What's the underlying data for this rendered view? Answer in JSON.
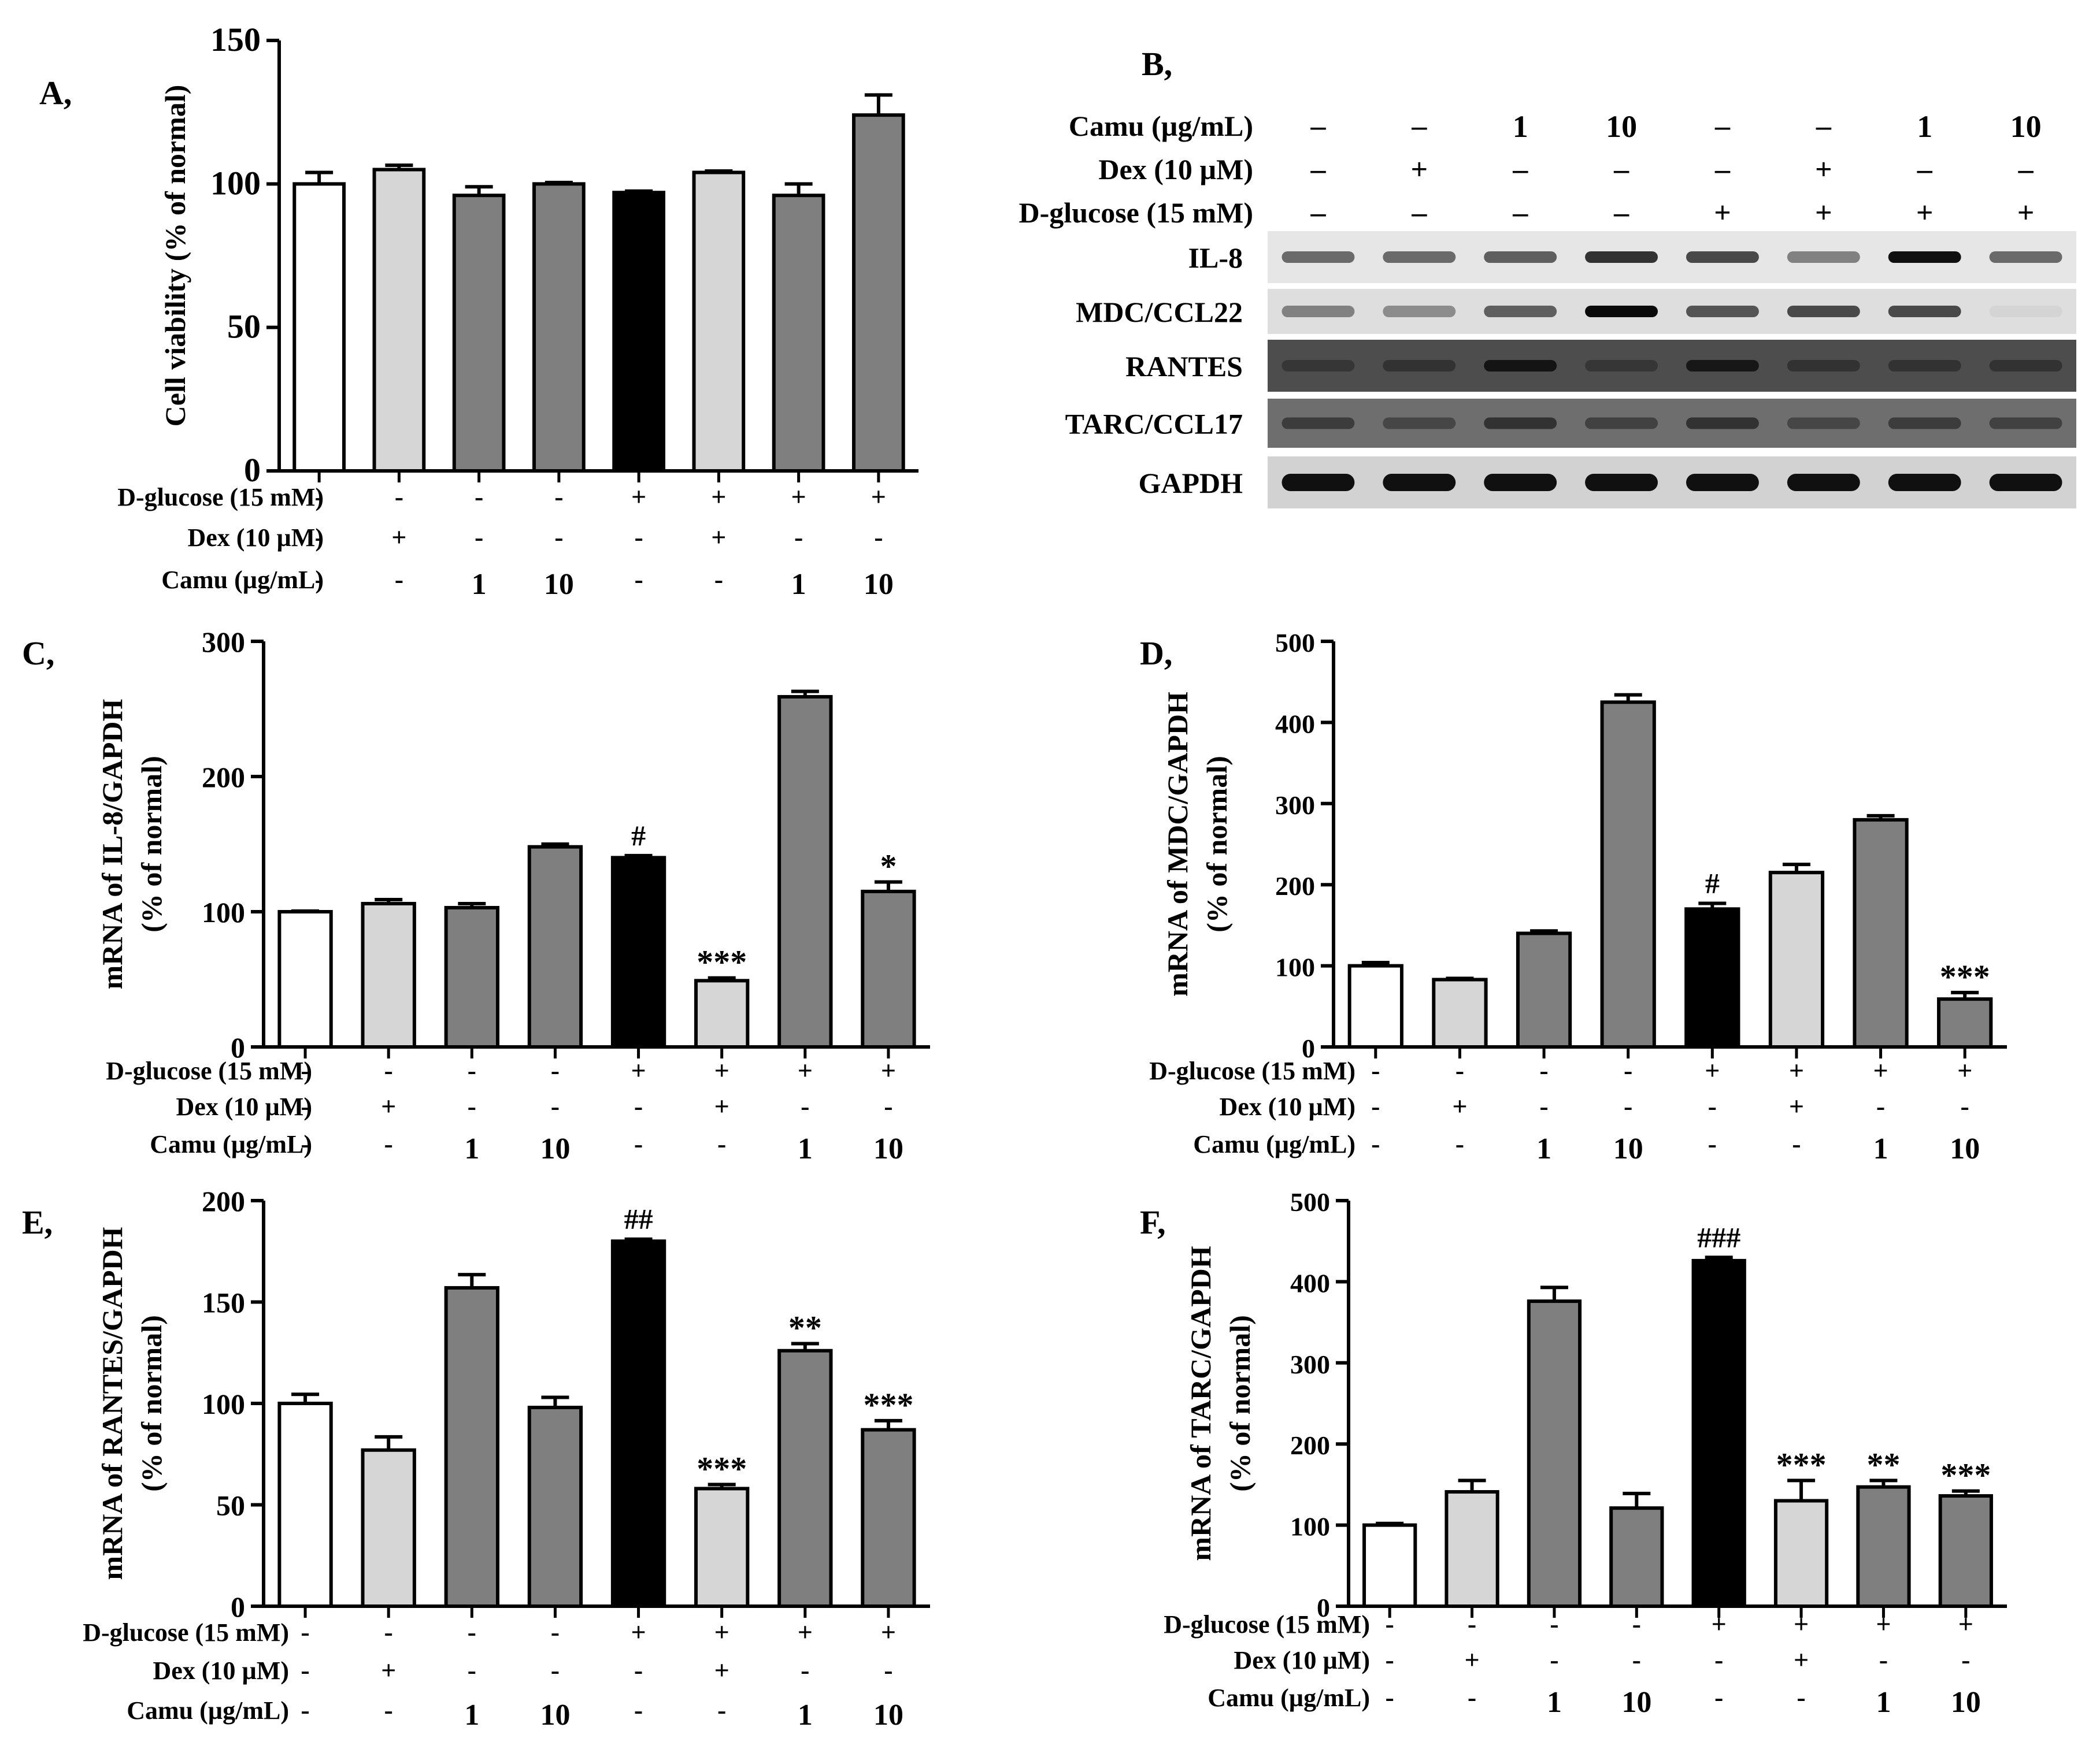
{
  "figure": {
    "row_labels": [
      "D-glucose (15 mM)",
      "Dex (10 µM)",
      "Camu (µg/mL)"
    ],
    "treatment_rows": [
      [
        "-",
        "-",
        "-",
        "-",
        "+",
        "+",
        "+",
        "+"
      ],
      [
        "-",
        "+",
        "-",
        "-",
        "-",
        "+",
        "-",
        "-"
      ],
      [
        "-",
        "-",
        "1",
        "10",
        "-",
        "-",
        "1",
        "10"
      ]
    ],
    "bar_fill_keys": [
      "white",
      "light",
      "dark",
      "dark",
      "black",
      "light",
      "dark",
      "dark"
    ],
    "colors": {
      "white": "#ffffff",
      "light": "#d6d6d6",
      "dark": "#7f7f7f",
      "black": "#000000",
      "axis": "#000000"
    }
  },
  "gel": {
    "panel_label": "B,",
    "header_labels": [
      "Camu (µg/mL)",
      "Dex (10 µM)",
      "D-glucose (15 mM)"
    ],
    "header_rows": [
      [
        "–",
        "–",
        "1",
        "10",
        "–",
        "–",
        "1",
        "10"
      ],
      [
        "–",
        "+",
        "–",
        "–",
        "–",
        "+",
        "–",
        "–"
      ],
      [
        "–",
        "–",
        "–",
        "–",
        "+",
        "+",
        "+",
        "+"
      ]
    ],
    "genes": [
      "IL-8",
      "MDC/CCL22",
      "RANTES",
      "TARC/CCL17",
      "GAPDH"
    ],
    "band_intensity": [
      [
        0.55,
        0.55,
        0.6,
        0.8,
        0.7,
        0.45,
        0.95,
        0.55
      ],
      [
        0.45,
        0.4,
        0.6,
        0.98,
        0.65,
        0.7,
        0.7,
        0.08
      ],
      [
        0.35,
        0.4,
        0.85,
        0.35,
        0.8,
        0.4,
        0.4,
        0.4
      ],
      [
        0.5,
        0.4,
        0.6,
        0.45,
        0.6,
        0.4,
        0.5,
        0.45
      ],
      [
        0.95,
        0.95,
        0.95,
        0.95,
        0.95,
        0.95,
        0.95,
        0.95
      ]
    ]
  },
  "chart_data": [
    {
      "id": "A",
      "panel_label": "A,",
      "type": "bar",
      "ylabel_lines": [
        "Cell viability (% of normal)"
      ],
      "ylim": [
        0,
        150
      ],
      "yticks": [
        0,
        50,
        100,
        150
      ],
      "values": [
        100,
        105,
        96,
        100,
        97,
        104,
        96,
        124
      ],
      "errors": [
        4,
        1.5,
        3,
        0.5,
        0.5,
        0.5,
        4,
        7
      ],
      "annotations": [
        "",
        "",
        "",
        "",
        "",
        "",
        "",
        ""
      ]
    },
    {
      "id": "C",
      "panel_label": "C,",
      "type": "bar",
      "ylabel_lines": [
        "mRNA of IL-8/GAPDH",
        "(% of normal)"
      ],
      "ylim": [
        0,
        300
      ],
      "yticks": [
        0,
        100,
        200,
        300
      ],
      "values": [
        100,
        106,
        103,
        148,
        140,
        49,
        259,
        115
      ],
      "errors": [
        0.5,
        3,
        3,
        2,
        1.5,
        2,
        4,
        7
      ],
      "annotations": [
        "",
        "",
        "",
        "",
        "#",
        "***",
        "",
        "*"
      ]
    },
    {
      "id": "D",
      "panel_label": "D,",
      "type": "bar",
      "ylabel_lines": [
        "mRNA of MDC/GAPDH",
        "(% of normal)"
      ],
      "ylim": [
        0,
        500
      ],
      "yticks": [
        0,
        100,
        200,
        300,
        400,
        500
      ],
      "values": [
        100,
        83,
        140,
        425,
        170,
        215,
        280,
        59
      ],
      "errors": [
        4,
        1.5,
        3,
        9,
        7,
        10,
        5,
        8
      ],
      "annotations": [
        "",
        "",
        "",
        "",
        "#",
        "",
        "",
        "***"
      ]
    },
    {
      "id": "E",
      "panel_label": "E,",
      "type": "bar",
      "ylabel_lines": [
        "mRNA of RANTES/GAPDH",
        "(% of normal)"
      ],
      "ylim": [
        0,
        200
      ],
      "yticks": [
        0,
        50,
        100,
        150,
        200
      ],
      "values": [
        100,
        77,
        157,
        98,
        180,
        58,
        126,
        87
      ],
      "errors": [
        4.5,
        6.5,
        6.5,
        5,
        1,
        2,
        3.5,
        4.5
      ],
      "annotations": [
        "",
        "",
        "",
        "",
        "##",
        "***",
        "**",
        "***"
      ]
    },
    {
      "id": "F",
      "panel_label": "F,",
      "type": "bar",
      "ylabel_lines": [
        "mRNA of TARC/GAPDH",
        "(% of normal)"
      ],
      "ylim": [
        0,
        500
      ],
      "yticks": [
        0,
        100,
        200,
        300,
        400,
        500
      ],
      "values": [
        100,
        141,
        376,
        121,
        426,
        130,
        147,
        136
      ],
      "errors": [
        2,
        14,
        17,
        18,
        4,
        25,
        8,
        6
      ],
      "annotations": [
        "",
        "",
        "",
        "",
        "###",
        "***",
        "**",
        "***"
      ]
    }
  ]
}
